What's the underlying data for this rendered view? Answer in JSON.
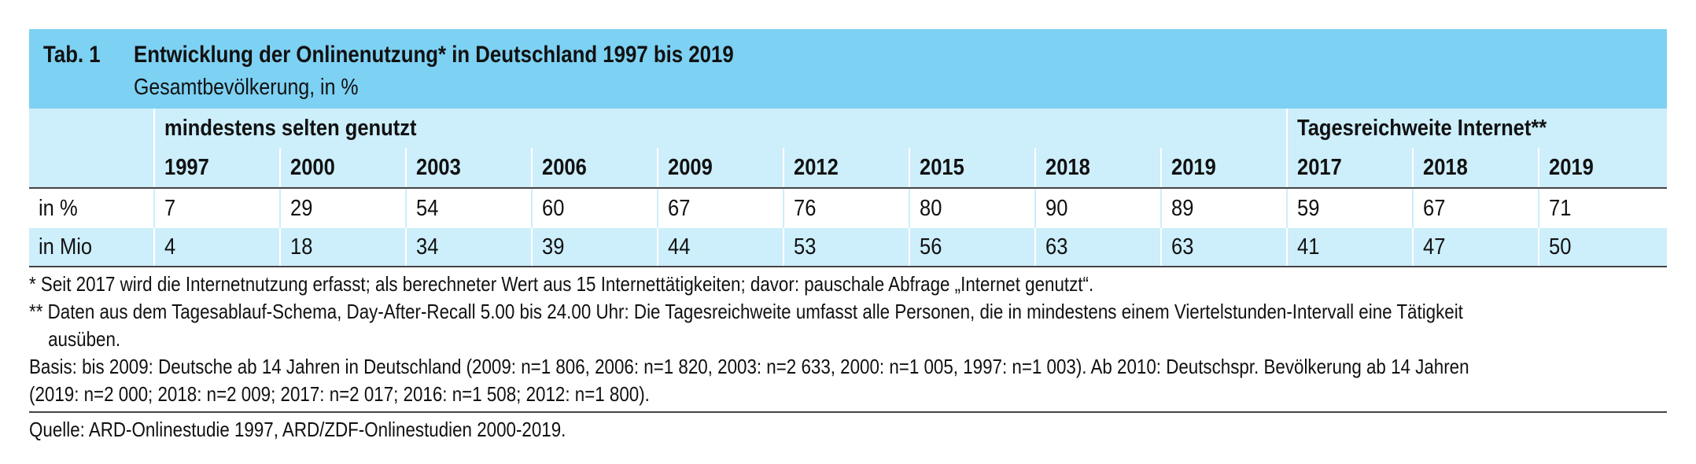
{
  "table": {
    "tab_label": "Tab. 1",
    "title": "Entwicklung der Onlinenutzung* in Deutschland 1997 bis 2019",
    "subtitle": "Gesamtbevölkerung, in %",
    "group_headers": {
      "left": "mindestens selten genutzt",
      "right": "Tagesreichweite Internet**"
    },
    "years": [
      "1997",
      "2000",
      "2003",
      "2006",
      "2009",
      "2012",
      "2015",
      "2018",
      "2019",
      "2017",
      "2018",
      "2019"
    ],
    "rows": [
      {
        "label": "in %",
        "values": [
          "7",
          "29",
          "54",
          "60",
          "67",
          "76",
          "80",
          "90",
          "89",
          "59",
          "67",
          "71"
        ]
      },
      {
        "label": "in Mio",
        "values": [
          "4",
          "18",
          "34",
          "39",
          "44",
          "53",
          "56",
          "63",
          "63",
          "41",
          "47",
          "50"
        ]
      }
    ]
  },
  "notes": {
    "note1": "*   Seit 2017 wird die Internetnutzung erfasst; als berechneter Wert aus 15 Internettätigkeiten; davor: pauschale Abfrage „Internet genutzt“.",
    "note2a": "** Daten aus dem Tagesablauf-Schema, Day-After-Recall 5.00 bis 24.00 Uhr: Die Tagesreichweite umfasst alle Personen, die in mindestens einem Viertelstunden-Intervall eine Tätigkeit",
    "note2b": "ausüben.",
    "basis1": "Basis: bis 2009: Deutsche ab 14 Jahren in Deutschland (2009: n=1 806, 2006: n=1 820, 2003: n=2 633, 2000: n=1 005, 1997: n=1 003). Ab 2010: Deutschspr. Bevölkerung ab 14 Jahren",
    "basis2": "(2019: n=2 000; 2018: n=2 009; 2017: n=2 017; 2016: n=1 508; 2012: n=1 800).",
    "source": "Quelle: ARD-Onlinestudie 1997, ARD/ZDF-Onlinestudien 2000-2019."
  }
}
